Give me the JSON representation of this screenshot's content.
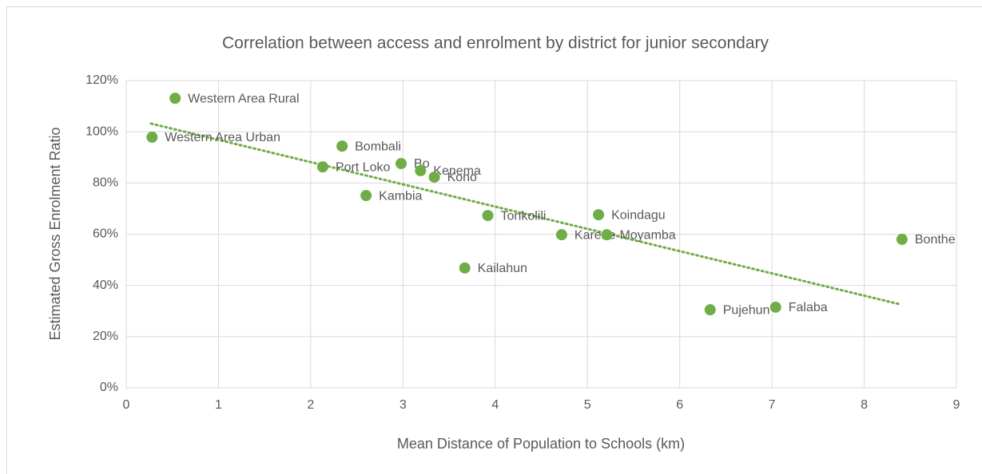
{
  "chart_data": {
    "type": "scatter",
    "title": "Correlation between access and enrolment by district for junior secondary",
    "xlabel": "Mean Distance of Population to Schools (km)",
    "ylabel": "Estimated Gross Enrolment Ratio",
    "color": "#70ad47",
    "grid": true,
    "labels": [
      "Western Area Rural",
      "Western Area Urban",
      "Bombali",
      "Port Loko",
      "Bo",
      "Kenema",
      "Kono",
      "Kambia",
      "Tonkolili",
      "Koindagu",
      "Karene",
      "Moyamba",
      "Bonthe",
      "Kailahun",
      "Pujehun",
      "Falaba"
    ],
    "x": [
      0.53,
      0.28,
      2.34,
      2.13,
      2.98,
      3.19,
      3.34,
      2.6,
      3.92,
      5.12,
      4.72,
      5.21,
      8.41,
      3.67,
      6.33,
      7.04
    ],
    "values": [
      113.1,
      97.9,
      94.4,
      86.3,
      87.6,
      84.8,
      82.3,
      75.1,
      67.3,
      67.6,
      59.8,
      59.8,
      58.0,
      46.8,
      30.5,
      31.5
    ],
    "trendline": {
      "x": [
        0.27,
        8.38
      ],
      "y": [
        103.2,
        32.7
      ]
    },
    "xlim": [
      0,
      9
    ],
    "xticks": [
      0,
      1,
      2,
      3,
      4,
      5,
      6,
      7,
      8,
      9
    ],
    "ylim": [
      0,
      120
    ],
    "yticks": [
      {
        "value": 0,
        "label": "0%"
      },
      {
        "value": 20,
        "label": "20%"
      },
      {
        "value": 40,
        "label": "40%"
      },
      {
        "value": 60,
        "label": "60%"
      },
      {
        "value": 80,
        "label": "80%"
      },
      {
        "value": 100,
        "label": "100%"
      },
      {
        "value": 120,
        "label": "120%"
      }
    ]
  }
}
